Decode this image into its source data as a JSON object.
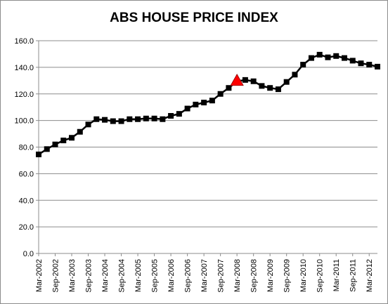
{
  "chart_data": {
    "type": "line",
    "title": "ABS HOUSE PRICE INDEX",
    "xlabel": "",
    "ylabel": "",
    "ylim": [
      0,
      160
    ],
    "yticks": [
      "0.0",
      "20.0",
      "40.0",
      "60.0",
      "80.0",
      "100.0",
      "120.0",
      "140.0",
      "160.0"
    ],
    "x_labels": [
      "Mar-2002",
      "Sep-2002",
      "Mar-2003",
      "Sep-2003",
      "Mar-2004",
      "Sep-2004",
      "Mar-2005",
      "Sep-2005",
      "Mar-2006",
      "Sep-2006",
      "Mar-2007",
      "Sep-2007",
      "Mar-2008",
      "Sep-2008",
      "Mar-2009",
      "Sep-2009",
      "Mar-2010",
      "Sep-2010",
      "Mar-2011",
      "Sep-2011",
      "Mar-2012"
    ],
    "grid": true,
    "legend": "none",
    "series": [
      {
        "values": [
          74.5,
          78.5,
          82.0,
          85.0,
          87.0,
          91.5,
          97.0,
          101.0,
          100.5,
          99.5,
          99.5,
          101.0,
          101.0,
          101.5,
          101.5,
          101.0,
          103.5,
          105.0,
          109.0,
          112.0,
          113.5,
          115.0,
          120.0,
          124.5,
          129.5,
          130.5,
          129.5,
          126.0,
          124.5,
          123.5,
          129.0,
          134.5,
          142.0,
          147.0,
          149.5,
          147.5,
          148.5,
          147.0,
          145.0,
          143.0,
          142.0,
          140.5
        ],
        "highlight_index": 24,
        "line_color": "#000000",
        "marker_color": "#000000",
        "highlight_color": "#ff0000"
      }
    ]
  }
}
